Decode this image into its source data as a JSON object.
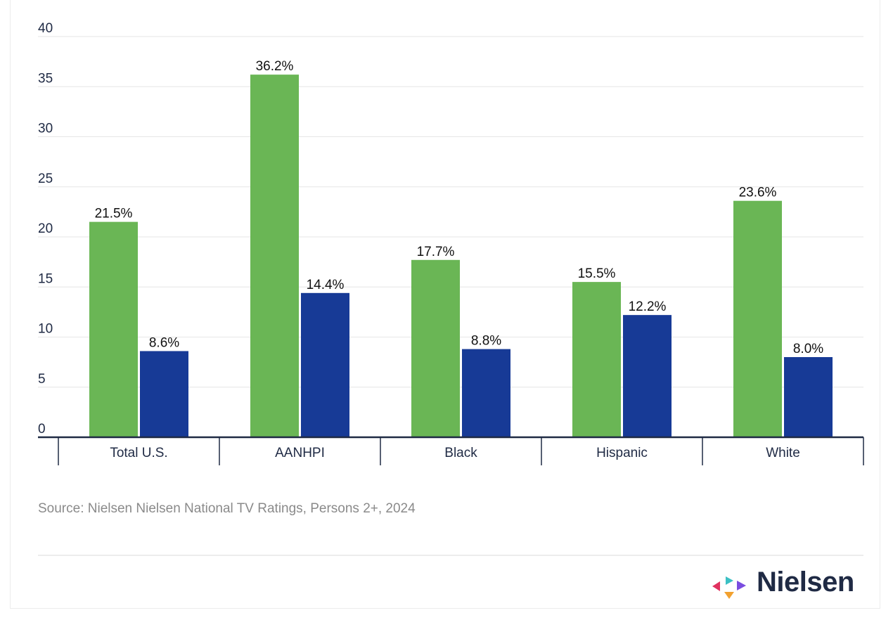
{
  "chart_data": {
    "type": "bar",
    "categories": [
      "Total U.S.",
      "AANHPI",
      "Black",
      "Hispanic",
      "White"
    ],
    "series": [
      {
        "color": "#6ab655",
        "values": [
          21.5,
          36.2,
          17.7,
          15.5,
          23.6
        ],
        "labels": [
          "21.5%",
          "36.2%",
          "17.7%",
          "15.5%",
          "23.6%"
        ]
      },
      {
        "color": "#173a96",
        "values": [
          8.6,
          14.4,
          8.8,
          12.2,
          8.0
        ],
        "labels": [
          "8.6%",
          "14.4%",
          "8.8%",
          "12.2%",
          "8.0%"
        ]
      }
    ],
    "yticks": [
      "0",
      "5",
      "10",
      "15",
      "20",
      "25",
      "30",
      "35",
      "40"
    ],
    "ylim": [
      0,
      40
    ],
    "grid": true,
    "legend": "none"
  },
  "source": "Source: Nielsen Nielsen National TV Ratings, Persons 2+, 2024",
  "brand": {
    "name": "Nielsen",
    "logo_colors": [
      "#e0325f",
      "#f2a12f",
      "#3bc0c4",
      "#7a4de0"
    ]
  }
}
